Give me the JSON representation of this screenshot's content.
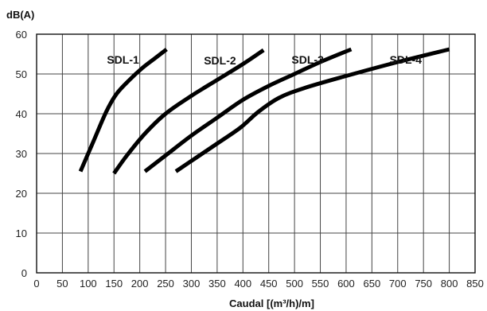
{
  "chart_data": {
    "type": "line",
    "title": "",
    "ylabel": "dB(A)",
    "xlabel": "Caudal [(m³/h)/m]",
    "xlim": [
      0,
      850
    ],
    "ylim": [
      0,
      60
    ],
    "x_ticks": [
      0,
      50,
      100,
      150,
      200,
      250,
      300,
      350,
      400,
      450,
      500,
      550,
      600,
      650,
      700,
      750,
      800,
      850
    ],
    "y_ticks": [
      0,
      10,
      20,
      30,
      40,
      50,
      60
    ],
    "grid": true,
    "legend": "inline labels near line ends",
    "series": [
      {
        "name": "SDL-1",
        "points": [
          [
            85,
            25.5
          ],
          [
            110,
            33
          ],
          [
            135,
            40.5
          ],
          [
            155,
            45
          ],
          [
            180,
            48.5
          ],
          [
            205,
            51.5
          ],
          [
            230,
            54
          ],
          [
            252,
            56.2
          ]
        ]
      },
      {
        "name": "SDL-2",
        "points": [
          [
            150,
            25
          ],
          [
            175,
            29.5
          ],
          [
            210,
            35
          ],
          [
            250,
            40
          ],
          [
            300,
            44.5
          ],
          [
            350,
            48.5
          ],
          [
            400,
            52.5
          ],
          [
            440,
            56
          ]
        ]
      },
      {
        "name": "SDL-3",
        "points": [
          [
            210,
            25.5
          ],
          [
            250,
            29.5
          ],
          [
            300,
            34.5
          ],
          [
            350,
            39
          ],
          [
            400,
            43.5
          ],
          [
            450,
            47
          ],
          [
            500,
            50
          ],
          [
            550,
            53
          ],
          [
            610,
            56.2
          ]
        ]
      },
      {
        "name": "SDL-4",
        "points": [
          [
            270,
            25.5
          ],
          [
            310,
            29
          ],
          [
            350,
            32.5
          ],
          [
            395,
            36.5
          ],
          [
            430,
            40.5
          ],
          [
            470,
            44
          ],
          [
            520,
            46.5
          ],
          [
            600,
            49.5
          ],
          [
            700,
            53
          ],
          [
            800,
            56.2
          ]
        ]
      }
    ]
  }
}
